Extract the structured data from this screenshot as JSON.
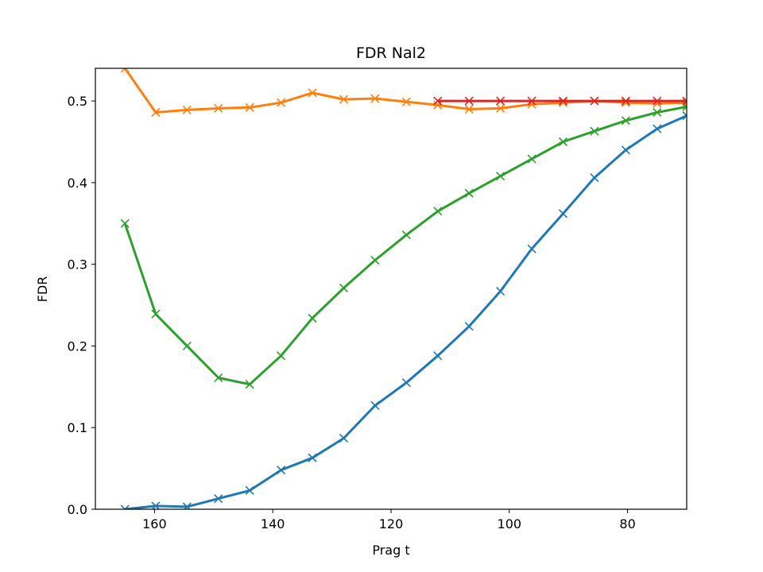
{
  "chart_data": {
    "type": "line",
    "title": "FDR Nal2",
    "xlabel": "Prag t",
    "ylabel": "FDR",
    "xlim": [
      170,
      70
    ],
    "ylim": [
      0,
      0.54
    ],
    "x_ticks": [
      160,
      140,
      120,
      100,
      80
    ],
    "y_ticks": [
      0.0,
      0.1,
      0.2,
      0.3,
      0.4,
      0.5
    ],
    "grid": false,
    "marker": "x",
    "series": [
      {
        "color": "#1f77b4",
        "x": [
          165,
          159.8,
          154.5,
          149.2,
          143.9,
          138.6,
          133.3,
          128.0,
          122.7,
          117.4,
          112.1,
          106.8,
          101.5,
          96.2,
          90.9,
          85.6,
          80.3,
          75.0,
          70.0
        ],
        "y": [
          0.0,
          0.004,
          0.003,
          0.013,
          0.023,
          0.048,
          0.063,
          0.087,
          0.127,
          0.155,
          0.188,
          0.224,
          0.267,
          0.319,
          0.362,
          0.406,
          0.44,
          0.466,
          0.482
        ]
      },
      {
        "color": "#ff7f0e",
        "x": [
          165,
          159.8,
          154.5,
          149.2,
          143.9,
          138.6,
          133.3,
          128.0,
          122.7,
          117.4,
          112.1,
          106.8,
          101.5,
          96.2,
          90.9,
          85.6,
          80.3,
          75.0,
          70.0
        ],
        "y": [
          0.54,
          0.486,
          0.489,
          0.491,
          0.492,
          0.498,
          0.51,
          0.502,
          0.503,
          0.499,
          0.495,
          0.49,
          0.491,
          0.496,
          0.498,
          0.5,
          0.498,
          0.497,
          0.498
        ]
      },
      {
        "color": "#2ca02c",
        "x": [
          165,
          159.8,
          154.5,
          149.2,
          143.9,
          138.6,
          133.3,
          128.0,
          122.7,
          117.4,
          112.1,
          106.8,
          101.5,
          96.2,
          90.9,
          85.6,
          80.3,
          75.0,
          70.0
        ],
        "y": [
          0.35,
          0.239,
          0.2,
          0.161,
          0.153,
          0.188,
          0.234,
          0.271,
          0.305,
          0.336,
          0.365,
          0.387,
          0.408,
          0.429,
          0.45,
          0.463,
          0.476,
          0.486,
          0.493
        ]
      },
      {
        "color": "#d62728",
        "x": [
          112.1,
          106.8,
          101.5,
          96.2,
          90.9,
          85.6,
          80.3,
          75.0,
          70.0
        ],
        "y": [
          0.5,
          0.5,
          0.5,
          0.5,
          0.5,
          0.5,
          0.5,
          0.5,
          0.5
        ]
      }
    ]
  }
}
